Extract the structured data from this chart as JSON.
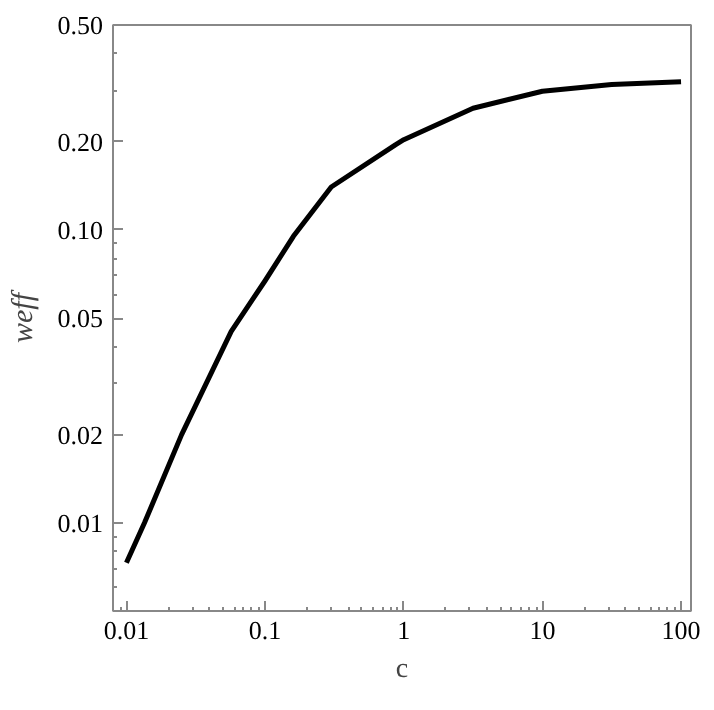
{
  "chart_data": {
    "type": "line",
    "xlabel": "c",
    "ylabel": "weff",
    "log": "xy",
    "grid": false,
    "x": [
      0.01,
      0.0135,
      0.025,
      0.057,
      0.1,
      0.16,
      0.3,
      0.87,
      1,
      3.16,
      10,
      31.6,
      100
    ],
    "series": [
      {
        "color": "#000000",
        "values": [
          0.0073,
          0.01,
          0.02,
          0.045,
          0.067,
          0.095,
          0.14,
          0.195,
          0.203,
          0.26,
          0.297,
          0.313,
          0.32
        ]
      }
    ],
    "xlim": [
      0.008,
      118
    ],
    "ylim": [
      0.005,
      0.5
    ],
    "xticks": [
      0.01,
      0.1,
      1,
      10,
      100
    ],
    "yticks": [
      0.01,
      0.02,
      0.05,
      {
        "value": 0.1,
        "label": "0.10"
      },
      {
        "value": 0.2,
        "label": "0.20"
      },
      {
        "value": 0.5,
        "label": "0.50"
      }
    ],
    "line_style": "solid",
    "marker": "none"
  }
}
